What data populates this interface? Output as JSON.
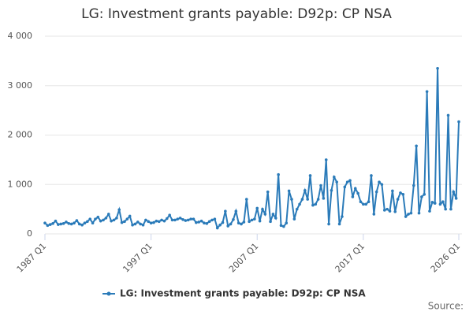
{
  "chart_data": {
    "type": "line",
    "title": "LG: Investment grants payable: D92p: CP NSA",
    "source": "Source:",
    "categories": [
      "1987 Q1",
      null,
      null,
      null,
      null,
      null,
      null,
      null,
      null,
      null,
      null,
      null,
      null,
      null,
      null,
      null,
      null,
      null,
      null,
      null,
      null,
      null,
      null,
      null,
      null,
      null,
      null,
      null,
      null,
      null,
      null,
      null,
      null,
      null,
      null,
      null,
      null,
      null,
      null,
      null,
      "1997 Q1",
      null,
      null,
      null,
      null,
      null,
      null,
      null,
      null,
      null,
      null,
      null,
      null,
      null,
      null,
      null,
      null,
      null,
      null,
      null,
      null,
      null,
      null,
      null,
      null,
      null,
      null,
      null,
      null,
      null,
      null,
      null,
      null,
      null,
      null,
      null,
      null,
      null,
      null,
      null,
      "2007 Q1",
      null,
      null,
      null,
      null,
      null,
      null,
      null,
      null,
      null,
      null,
      null,
      null,
      null,
      null,
      null,
      null,
      null,
      null,
      null,
      null,
      null,
      null,
      null,
      null,
      null,
      null,
      null,
      null,
      null,
      null,
      null,
      null,
      null,
      null,
      null,
      null,
      null,
      null,
      null,
      "2017 Q1",
      null,
      null,
      null,
      null,
      null,
      null,
      null,
      null,
      null,
      null,
      null,
      null,
      null,
      null,
      null,
      null,
      null,
      null,
      null,
      null,
      null,
      null,
      null,
      null,
      null,
      null,
      null,
      null,
      null,
      null,
      null,
      null,
      null,
      null,
      null,
      "2026 Q1"
    ],
    "series": [
      {
        "name": "LG: Investment grants payable: D92p: CP NSA",
        "color": "#2b7bb9",
        "values": [
          220,
          170,
          190,
          210,
          260,
          190,
          200,
          210,
          240,
          210,
          200,
          220,
          270,
          200,
          180,
          220,
          250,
          300,
          220,
          300,
          340,
          260,
          280,
          320,
          400,
          260,
          280,
          320,
          490,
          230,
          250,
          300,
          360,
          180,
          200,
          240,
          200,
          180,
          280,
          250,
          220,
          230,
          260,
          250,
          280,
          260,
          310,
          380,
          280,
          280,
          300,
          320,
          290,
          270,
          280,
          300,
          300,
          230,
          240,
          260,
          220,
          210,
          250,
          280,
          300,
          120,
          180,
          230,
          460,
          160,
          200,
          290,
          460,
          220,
          200,
          240,
          700,
          250,
          280,
          300,
          520,
          260,
          500,
          400,
          850,
          250,
          400,
          320,
          1200,
          170,
          150,
          220,
          870,
          700,
          300,
          500,
          600,
          700,
          880,
          700,
          1180,
          580,
          600,
          700,
          980,
          720,
          1500,
          200,
          880,
          1150,
          1050,
          200,
          350,
          950,
          1050,
          1080,
          750,
          920,
          820,
          650,
          600,
          600,
          650,
          1180,
          400,
          850,
          1050,
          1000,
          480,
          500,
          460,
          870,
          450,
          700,
          830,
          800,
          350,
          400,
          420,
          980,
          1780,
          420,
          750,
          800,
          2880,
          460,
          640,
          620,
          3350,
          600,
          650,
          500,
          2400,
          500,
          850,
          720,
          2270
        ]
      }
    ],
    "ylim": [
      0,
      4000
    ],
    "yticks": [
      0,
      {
        "value": 1000,
        "label": "1 000"
      },
      {
        "value": 2000,
        "label": "2 000"
      },
      {
        "value": 3000,
        "label": "3 000"
      },
      {
        "value": 4000,
        "label": "4 000"
      }
    ],
    "grid": true
  }
}
